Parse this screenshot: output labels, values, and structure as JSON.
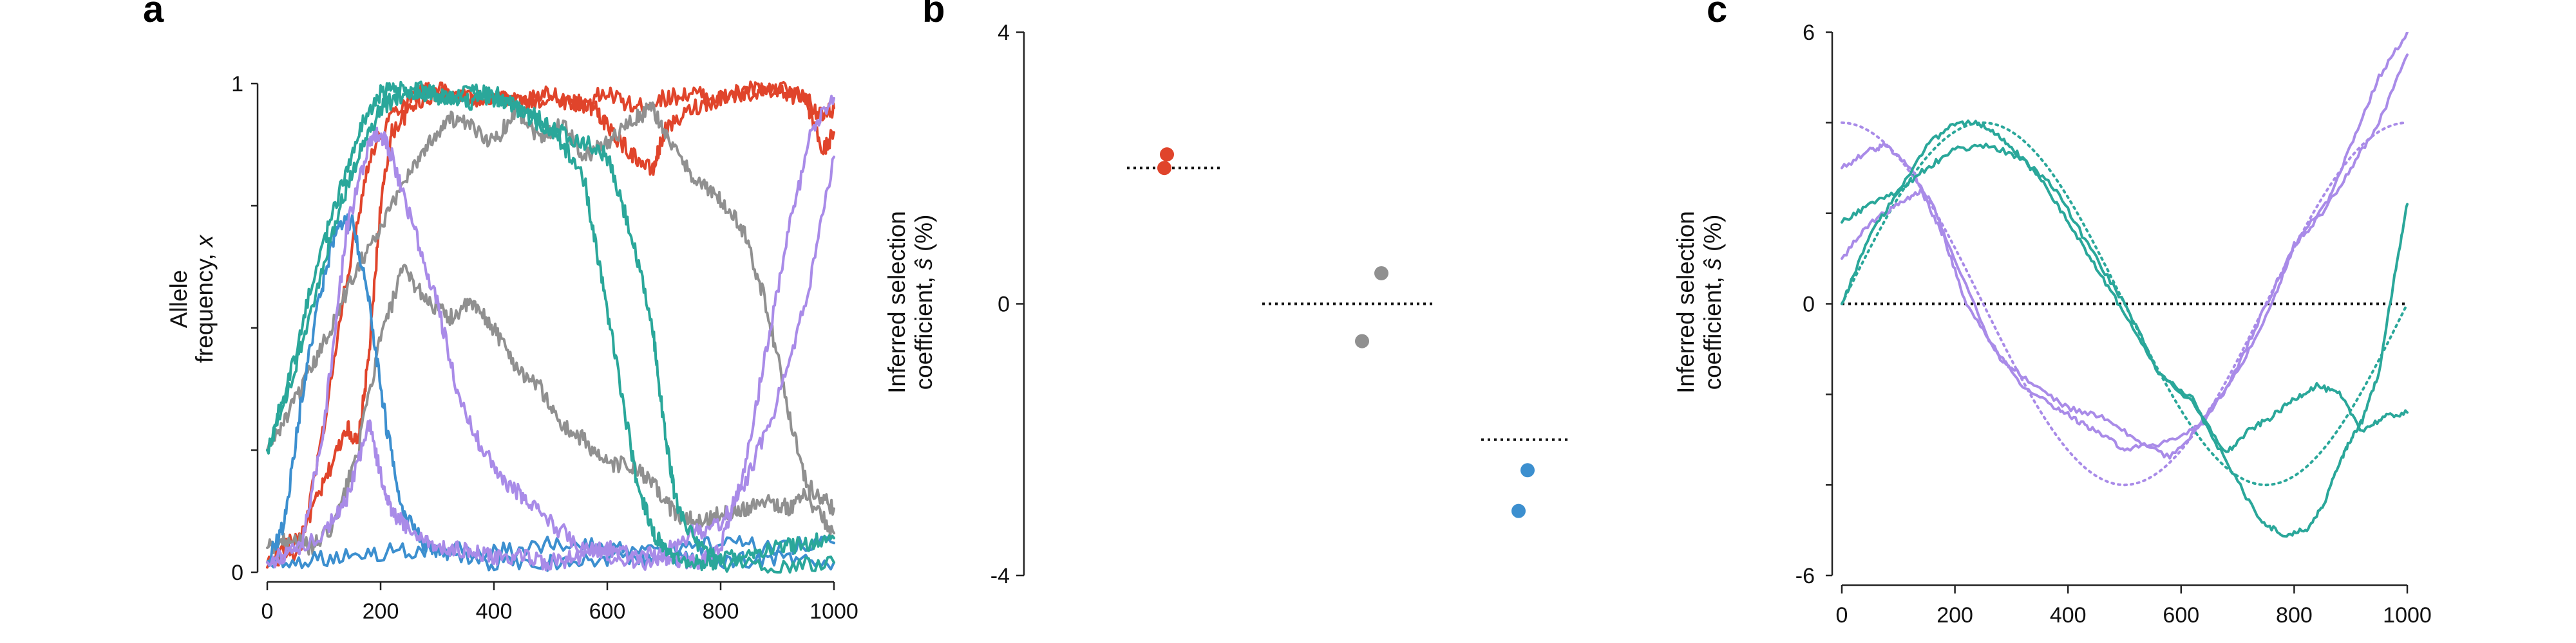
{
  "colors": {
    "red": "#e0442b",
    "gray": "#909090",
    "blue": "#3c8fcf",
    "purple": "#a98be8",
    "teal": "#2aa79a",
    "reference": "#111111"
  },
  "chart_data": [
    {
      "type": "line",
      "panel": "a",
      "ylabel_line1": "Allele",
      "ylabel_line2": "frequency, ",
      "ylabel_var": "x",
      "xlim": [
        0,
        1000
      ],
      "ylim": [
        0,
        1
      ],
      "xticks": [
        0,
        200,
        400,
        600,
        800,
        1000
      ],
      "yticks": [
        0,
        1
      ],
      "series": [
        {
          "color": "red",
          "x": [
            0,
            60,
            100,
            140,
            160,
            180,
            200,
            220,
            260,
            300,
            350,
            400,
            450,
            500,
            550,
            600,
            650,
            700,
            750,
            800,
            850,
            900,
            950,
            980,
            1000
          ],
          "y": [
            0.02,
            0.08,
            0.18,
            0.3,
            0.26,
            0.45,
            0.75,
            0.9,
            0.96,
            0.98,
            0.97,
            0.97,
            0.96,
            0.97,
            0.96,
            0.98,
            0.95,
            0.97,
            0.98,
            0.97,
            0.99,
            0.98,
            0.97,
            0.93,
            0.95
          ]
        },
        {
          "color": "red",
          "x": [
            0,
            60,
            100,
            140,
            180,
            220,
            260,
            300,
            350,
            400,
            450,
            500,
            550,
            580,
            600,
            640,
            680,
            700,
            750,
            800,
            850,
            900,
            950,
            980,
            1000
          ],
          "y": [
            0.01,
            0.05,
            0.3,
            0.6,
            0.85,
            0.94,
            0.98,
            0.99,
            0.97,
            0.97,
            0.96,
            0.98,
            0.96,
            0.95,
            0.91,
            0.86,
            0.82,
            0.9,
            0.95,
            0.97,
            0.98,
            0.99,
            0.97,
            0.86,
            0.9
          ]
        },
        {
          "color": "gray",
          "x": [
            0,
            40,
            80,
            120,
            160,
            200,
            240,
            280,
            320,
            360,
            400,
            440,
            480,
            520,
            560,
            600,
            640,
            680,
            720,
            760,
            800,
            840,
            880,
            920,
            960,
            1000
          ],
          "y": [
            0.25,
            0.33,
            0.42,
            0.52,
            0.63,
            0.7,
            0.8,
            0.87,
            0.93,
            0.91,
            0.88,
            0.95,
            0.89,
            0.92,
            0.85,
            0.88,
            0.92,
            0.95,
            0.86,
            0.8,
            0.76,
            0.7,
            0.55,
            0.33,
            0.14,
            0.08
          ]
        },
        {
          "color": "gray",
          "x": [
            0,
            40,
            80,
            120,
            160,
            200,
            240,
            280,
            320,
            360,
            400,
            440,
            480,
            520,
            560,
            600,
            640,
            680,
            720,
            760,
            800,
            840,
            880,
            920,
            960,
            1000
          ],
          "y": [
            0.05,
            0.07,
            0.05,
            0.1,
            0.25,
            0.48,
            0.62,
            0.56,
            0.52,
            0.55,
            0.5,
            0.42,
            0.38,
            0.3,
            0.27,
            0.22,
            0.22,
            0.18,
            0.12,
            0.1,
            0.12,
            0.13,
            0.15,
            0.13,
            0.17,
            0.13
          ]
        },
        {
          "color": "blue",
          "x": [
            0,
            30,
            60,
            90,
            120,
            150,
            180,
            210,
            240,
            280,
            320,
            400,
            500,
            600,
            700,
            800,
            900,
            1000
          ],
          "y": [
            0.02,
            0.1,
            0.35,
            0.55,
            0.7,
            0.72,
            0.55,
            0.3,
            0.12,
            0.05,
            0.03,
            0.02,
            0.02,
            0.03,
            0.03,
            0.02,
            0.03,
            0.02
          ]
        },
        {
          "color": "blue",
          "x": [
            0,
            100,
            200,
            300,
            400,
            500,
            600,
            700,
            800,
            900,
            1000
          ],
          "y": [
            0.02,
            0.03,
            0.04,
            0.05,
            0.04,
            0.06,
            0.05,
            0.04,
            0.06,
            0.05,
            0.06
          ]
        },
        {
          "color": "purple",
          "x": [
            0,
            60,
            100,
            140,
            180,
            200,
            220,
            260,
            300,
            340,
            380,
            420,
            460,
            500,
            560,
            620,
            680,
            720,
            760,
            800,
            840,
            880,
            920,
            960,
            1000
          ],
          "y": [
            0.02,
            0.05,
            0.3,
            0.7,
            0.88,
            0.9,
            0.85,
            0.7,
            0.55,
            0.35,
            0.25,
            0.18,
            0.15,
            0.1,
            0.05,
            0.03,
            0.02,
            0.03,
            0.02,
            0.05,
            0.2,
            0.45,
            0.7,
            0.9,
            0.97
          ]
        },
        {
          "color": "purple",
          "x": [
            0,
            100,
            140,
            180,
            200,
            220,
            240,
            280,
            320,
            360,
            400,
            450,
            500,
            550,
            600,
            650,
            700,
            750,
            800,
            850,
            900,
            950,
            1000
          ],
          "y": [
            0.02,
            0.08,
            0.15,
            0.3,
            0.2,
            0.12,
            0.1,
            0.06,
            0.05,
            0.04,
            0.03,
            0.03,
            0.02,
            0.03,
            0.05,
            0.03,
            0.04,
            0.08,
            0.1,
            0.2,
            0.35,
            0.55,
            0.85
          ]
        },
        {
          "color": "teal",
          "x": [
            0,
            40,
            80,
            120,
            160,
            200,
            240,
            280,
            320,
            360,
            400,
            440,
            480,
            520,
            560,
            590,
            620,
            650,
            680,
            700,
            720,
            760,
            800,
            900,
            1000
          ],
          "y": [
            0.25,
            0.4,
            0.6,
            0.75,
            0.9,
            0.98,
            0.99,
            0.98,
            0.97,
            0.96,
            0.98,
            0.95,
            0.93,
            0.88,
            0.8,
            0.6,
            0.4,
            0.2,
            0.08,
            0.05,
            0.03,
            0.02,
            0.02,
            0.01,
            0.02
          ]
        },
        {
          "color": "teal",
          "x": [
            0,
            40,
            80,
            120,
            160,
            200,
            240,
            280,
            320,
            360,
            400,
            440,
            480,
            520,
            560,
            600,
            640,
            680,
            700,
            720,
            760,
            800,
            850,
            900,
            950,
            1000
          ],
          "y": [
            0.25,
            0.38,
            0.55,
            0.72,
            0.85,
            0.95,
            0.98,
            0.99,
            0.97,
            0.99,
            0.97,
            0.95,
            0.92,
            0.9,
            0.88,
            0.85,
            0.7,
            0.5,
            0.3,
            0.15,
            0.05,
            0.03,
            0.04,
            0.05,
            0.06,
            0.07
          ]
        }
      ]
    },
    {
      "type": "scatter",
      "panel": "b",
      "ylabel_line1": "Inferred selection",
      "ylabel_line2_pre": "coefficient, ",
      "ylabel_var": "ŝ",
      "ylabel_line2_post": " (%)",
      "ylim": [
        -4,
        4
      ],
      "yticks": [
        -4,
        0,
        4
      ],
      "groups": [
        {
          "color": "red",
          "true_value": 2,
          "points": [
            2.2,
            2.0
          ]
        },
        {
          "color": "gray",
          "true_value": 0,
          "points": [
            0.45,
            -0.55
          ]
        },
        {
          "color": "blue",
          "true_value": -2,
          "points": [
            -2.45,
            -3.05
          ]
        }
      ]
    },
    {
      "type": "line",
      "panel": "c",
      "ylabel_line1": "Inferred selection",
      "ylabel_line2_pre": "coefficient, ",
      "ylabel_var": "ŝ",
      "ylabel_line2_post": " (%)",
      "xlim": [
        0,
        1000
      ],
      "ylim": [
        -6,
        6
      ],
      "xticks": [
        0,
        200,
        400,
        600,
        800,
        1000
      ],
      "yticks": [
        -6,
        0,
        6
      ],
      "true_curves": [
        {
          "color": "purple",
          "function": "4*cos(2*pi*t/1000)"
        },
        {
          "color": "teal",
          "function": "4*sin(2*pi*t/1000)"
        }
      ],
      "series": [
        {
          "color": "purple",
          "x": [
            0,
            50,
            80,
            120,
            160,
            200,
            260,
            320,
            380,
            420,
            460,
            500,
            560,
            620,
            680,
            740,
            800,
            860,
            900,
            950,
            1000
          ],
          "y": [
            3.0,
            3.4,
            3.5,
            3.0,
            2.2,
            1.0,
            -0.8,
            -1.8,
            -2.3,
            -2.6,
            -2.9,
            -3.2,
            -3.1,
            -2.8,
            -1.9,
            -0.3,
            1.3,
            2.3,
            3.5,
            5.0,
            6.0
          ]
        },
        {
          "color": "purple",
          "x": [
            0,
            50,
            100,
            140,
            180,
            220,
            280,
            340,
            400,
            460,
            520,
            580,
            640,
            700,
            760,
            800,
            850,
            900,
            950,
            1000
          ],
          "y": [
            1.0,
            1.8,
            2.2,
            2.5,
            1.5,
            0.0,
            -1.2,
            -1.8,
            -2.3,
            -2.5,
            -3.0,
            -3.4,
            -2.6,
            -1.5,
            0.0,
            1.3,
            2.0,
            3.0,
            4.0,
            5.5
          ]
        },
        {
          "color": "teal",
          "x": [
            0,
            50,
            100,
            150,
            200,
            240,
            280,
            320,
            360,
            400,
            450,
            500,
            560,
            620,
            680,
            740,
            780,
            820,
            850,
            880,
            900,
            920,
            950,
            980,
            1000
          ],
          "y": [
            0,
            1.5,
            2.5,
            3.5,
            4.0,
            4.0,
            3.7,
            3.2,
            2.6,
            1.8,
            0.8,
            -0.2,
            -1.5,
            -2.1,
            -3.5,
            -4.8,
            -5.1,
            -5.0,
            -4.5,
            -3.5,
            -3.0,
            -2.6,
            -1.5,
            0.8,
            2.2
          ]
        },
        {
          "color": "teal",
          "x": [
            0,
            50,
            100,
            150,
            200,
            260,
            320,
            380,
            440,
            500,
            560,
            620,
            680,
            720,
            760,
            800,
            840,
            880,
            920,
            960,
            1000
          ],
          "y": [
            1.8,
            2.2,
            2.5,
            3.0,
            3.4,
            3.5,
            3.2,
            2.5,
            1.2,
            0.0,
            -1.5,
            -2.2,
            -3.3,
            -2.8,
            -2.5,
            -2.1,
            -1.8,
            -2.0,
            -2.8,
            -2.5,
            -2.4
          ]
        }
      ]
    }
  ]
}
